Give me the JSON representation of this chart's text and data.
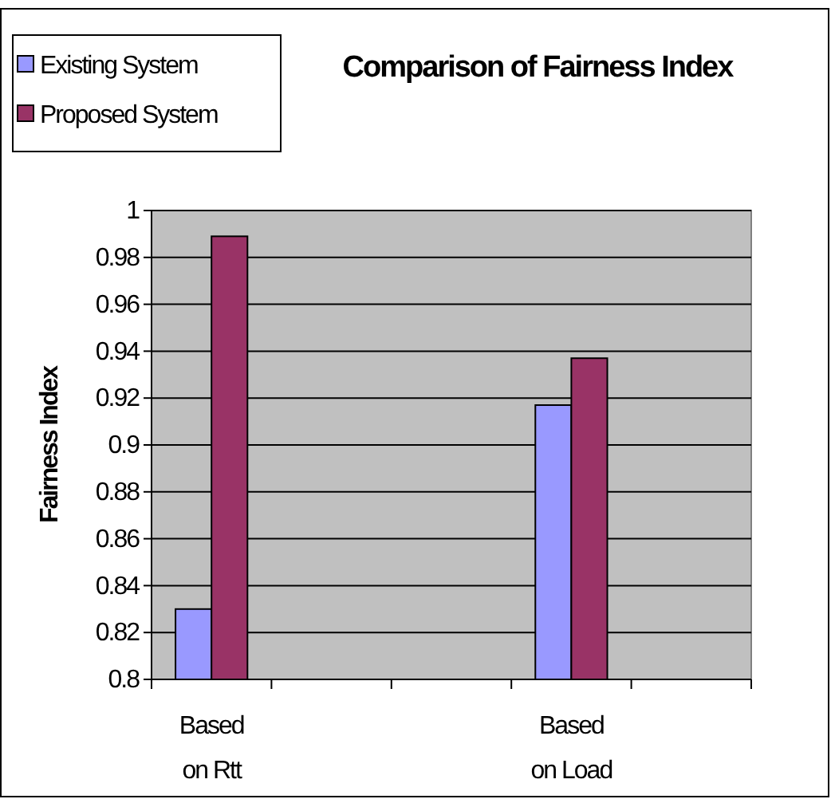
{
  "chart_data": {
    "type": "bar",
    "title": "Comparison of Fairness Index",
    "ylabel": "Fairness Index",
    "categories": [
      "Based on Rtt",
      null,
      null,
      "Based on Load",
      null
    ],
    "series": [
      {
        "name": "Existing System",
        "color": "#9999ff",
        "values": [
          0.83,
          null,
          null,
          0.917,
          null
        ]
      },
      {
        "name": "Proposed System",
        "color": "#993366",
        "values": [
          0.989,
          null,
          null,
          0.937,
          null
        ]
      }
    ],
    "ylim": [
      0.8,
      1
    ],
    "yticks": [
      0.8,
      0.82,
      0.84,
      0.86,
      0.88,
      0.9,
      0.92,
      0.94,
      0.96,
      0.98,
      1
    ],
    "grid": "y",
    "legend": "top left"
  }
}
